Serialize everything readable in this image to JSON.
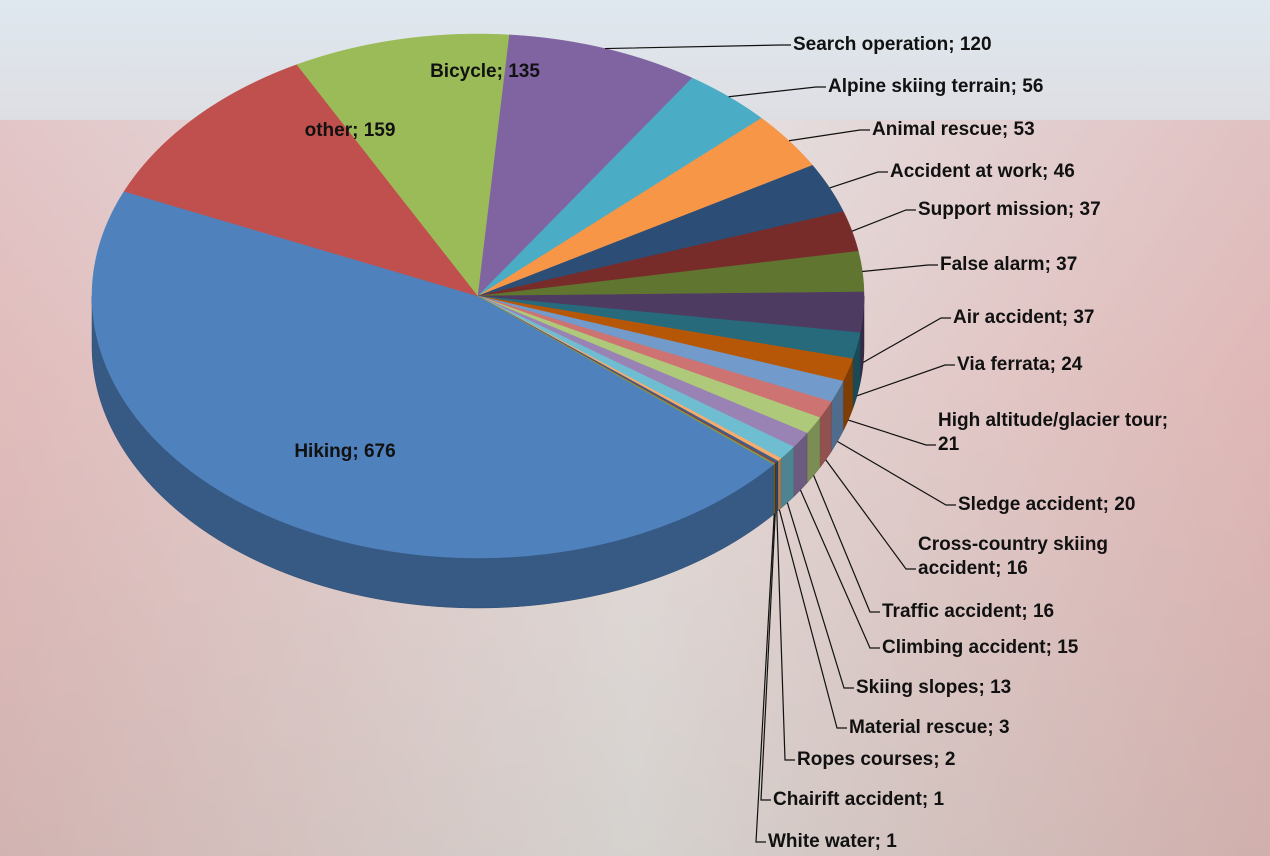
{
  "chart_data": {
    "type": "pie3d",
    "values": [
      676,
      159,
      135,
      120,
      56,
      53,
      46,
      37,
      37,
      37,
      24,
      21,
      20,
      16,
      16,
      15,
      13,
      3,
      2,
      1,
      1
    ],
    "value_labels": [
      "Hiking; 676",
      "other; 159",
      "Bicycle; 135",
      "Search operation; 120",
      "Alpine skiing terrain; 56",
      "Animal rescue; 53",
      "Accident at work; 46",
      "Support mission; 37",
      "False alarm; 37",
      "Air accident; 37",
      "Via ferrata; 24",
      "High altitude/glacier tour; 21",
      "Sledge accident; 20",
      "Cross-country skiing accident; 16",
      "Traffic accident; 16",
      "Climbing accident; 15",
      "Skiing slopes; 13",
      "Material rescue; 3",
      "Ropes courses; 2",
      "Chairift accident; 1",
      "White water; 1"
    ],
    "colors": [
      "#4f81bd",
      "#c0504d",
      "#9bbb59",
      "#8064a2",
      "#4bacc6",
      "#f79646",
      "#2c4d75",
      "#772c2a",
      "#5f7530",
      "#4d3b62",
      "#276a7c",
      "#b65708",
      "#729aca",
      "#cd7371",
      "#afc97a",
      "#9983b5",
      "#6fbdd1",
      "#f9ab6b",
      "#3a5f8b",
      "#9c3b38",
      "#7f9a48"
    ]
  }
}
